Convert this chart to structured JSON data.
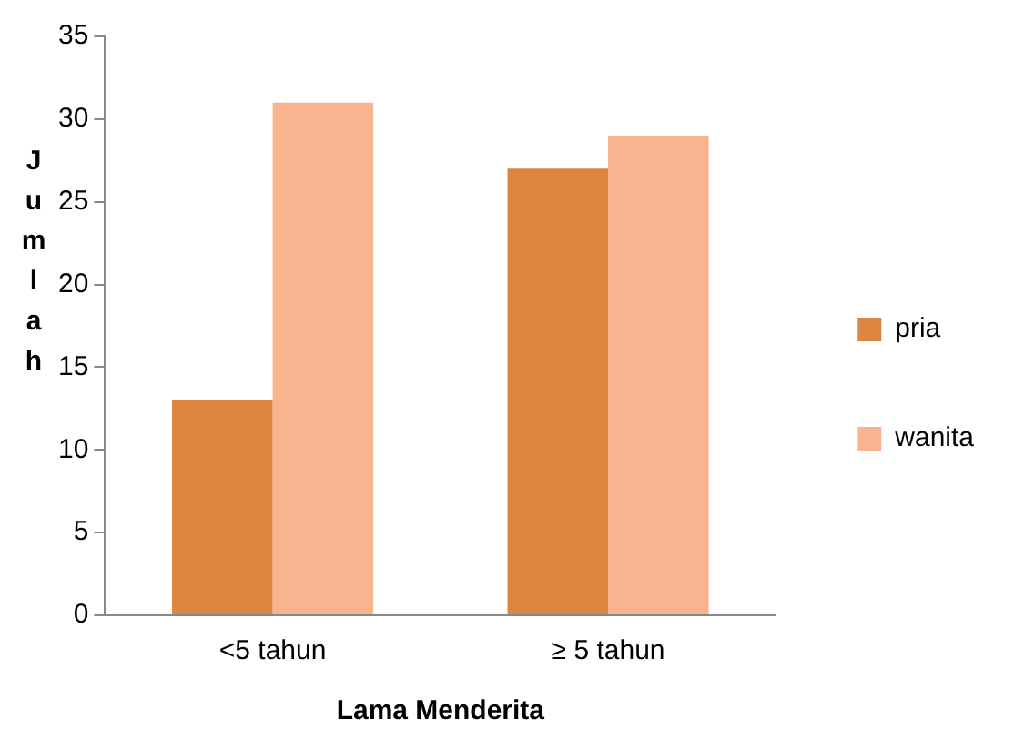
{
  "chart_data": {
    "type": "bar",
    "xlabel": "Lama Menderita",
    "ylabel": "Jumlah",
    "categories": [
      "<5 tahun",
      "≥ 5 tahun"
    ],
    "series": [
      {
        "name": "pria",
        "color": "#dd8641",
        "values": [
          13,
          27
        ]
      },
      {
        "name": "wanita",
        "color": "#f9b48f",
        "values": [
          31,
          29
        ]
      }
    ],
    "ylim": [
      0,
      35
    ],
    "yticks": [
      0,
      5,
      10,
      15,
      20,
      25,
      30,
      35
    ],
    "grid": false,
    "legend": "right"
  }
}
